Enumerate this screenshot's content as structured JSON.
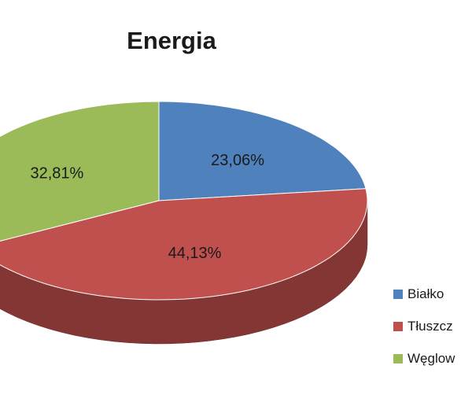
{
  "chart_data": {
    "type": "pie",
    "title": "Energia",
    "categories": [
      "Białko",
      "Tłuszcz",
      "Węglow"
    ],
    "values": [
      23.06,
      44.13,
      32.81
    ],
    "data_labels": [
      "23,06%",
      "44,13%",
      "32,81%"
    ],
    "colors": [
      "#4f81bd",
      "#c0504d",
      "#9bbb59"
    ],
    "legend_position": "right",
    "style": "3d"
  }
}
